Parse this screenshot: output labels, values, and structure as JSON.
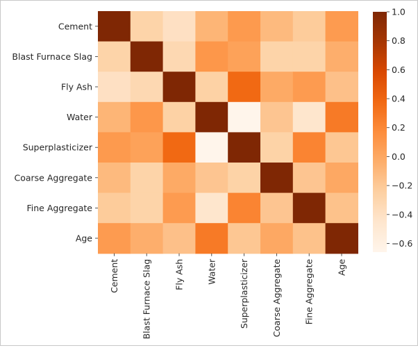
{
  "chart_data": {
    "type": "heatmap",
    "title": "",
    "xlabel": "",
    "ylabel": "",
    "rows": [
      "Cement",
      "Blast Furnace Slag",
      "Fly Ash",
      "Water",
      "Superplasticizer",
      "Coarse Aggregate",
      "Fine Aggregate",
      "Age"
    ],
    "columns": [
      "Cement",
      "Blast Furnace Slag",
      "Fly Ash",
      "Water",
      "Superplasticizer",
      "Coarse Aggregate",
      "Fine Aggregate",
      "Age"
    ],
    "values": [
      [
        1.0,
        -0.28,
        -0.4,
        -0.08,
        0.09,
        -0.11,
        -0.22,
        0.08
      ],
      [
        -0.28,
        1.0,
        -0.32,
        0.11,
        0.04,
        -0.28,
        -0.28,
        -0.04
      ],
      [
        -0.4,
        -0.32,
        1.0,
        -0.26,
        0.38,
        -0.01,
        0.08,
        -0.15
      ],
      [
        -0.08,
        0.11,
        -0.26,
        1.0,
        -0.66,
        -0.18,
        -0.45,
        0.28
      ],
      [
        0.09,
        0.04,
        0.38,
        -0.66,
        1.0,
        -0.27,
        0.22,
        -0.19
      ],
      [
        -0.11,
        -0.28,
        -0.01,
        -0.18,
        -0.27,
        1.0,
        -0.18,
        -0.0
      ],
      [
        -0.22,
        -0.28,
        0.08,
        -0.45,
        0.22,
        -0.18,
        1.0,
        -0.16
      ],
      [
        0.08,
        -0.04,
        -0.15,
        0.28,
        -0.19,
        -0.0,
        -0.16,
        1.0
      ]
    ],
    "vmin": -0.66,
    "vmax": 1.0,
    "colormap": "Oranges",
    "colorbar": {
      "ticks": [
        1.0,
        0.8,
        0.6,
        0.4,
        0.2,
        0.0,
        -0.2,
        -0.4,
        -0.6
      ],
      "tick_labels": [
        "1.0",
        "0.8",
        "0.6",
        "0.4",
        "0.2",
        "0.0",
        "−0.2",
        "−0.4",
        "−0.6"
      ],
      "placement": "right"
    }
  }
}
